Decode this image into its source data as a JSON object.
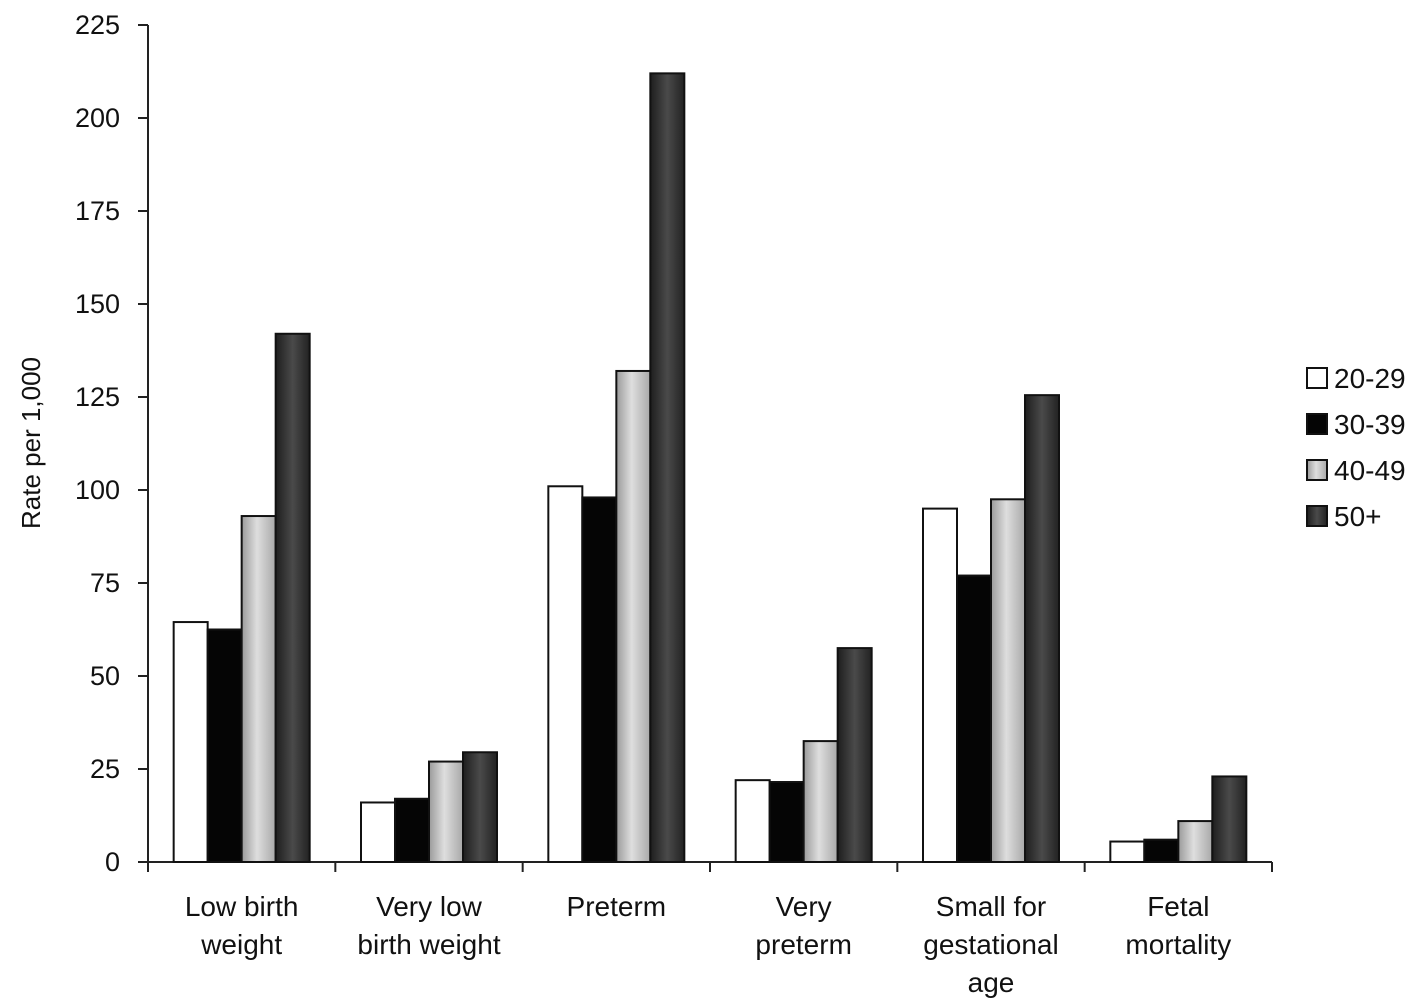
{
  "chart_data": {
    "type": "bar",
    "title": "",
    "xlabel": "",
    "ylabel": "Rate per 1,000",
    "ylim": [
      0,
      225
    ],
    "yticks": [
      0,
      25,
      50,
      75,
      100,
      125,
      150,
      175,
      200,
      225
    ],
    "grid": false,
    "legend_position": "right",
    "categories": [
      [
        "Low birth",
        "weight"
      ],
      [
        "Very low",
        "birth weight"
      ],
      [
        "Preterm"
      ],
      [
        "Very",
        "preterm"
      ],
      [
        "Small for",
        "gestational",
        "age"
      ],
      [
        "Fetal",
        "mortality"
      ]
    ],
    "series": [
      {
        "name": "20-29",
        "color": "#ffffff",
        "values": [
          64.5,
          16,
          101,
          22,
          95,
          5.5
        ]
      },
      {
        "name": "30-39",
        "color": "#050505",
        "values": [
          62.5,
          17,
          98,
          21.5,
          77,
          6
        ]
      },
      {
        "name": "40-49",
        "color": "#c9c9c9",
        "values": [
          93,
          27,
          132,
          32.5,
          97.5,
          11
        ]
      },
      {
        "name": "50+",
        "color": "#3a3a3a",
        "values": [
          142,
          29.5,
          212,
          57.5,
          125.5,
          23
        ]
      }
    ]
  }
}
